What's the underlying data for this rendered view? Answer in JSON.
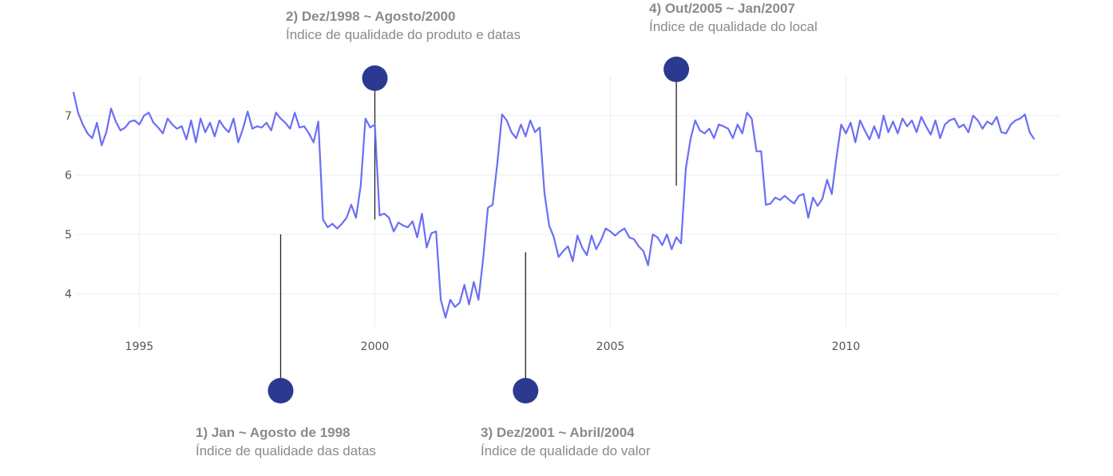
{
  "chart_data": {
    "type": "line",
    "title": "",
    "xlabel": "",
    "ylabel": "",
    "xlim": [
      1993.6,
      2014.6
    ],
    "ylim": [
      3.5,
      7.5
    ],
    "xticks": [
      "1995",
      "2000",
      "2005",
      "2010"
    ],
    "yticks": [
      "4",
      "5",
      "6",
      "7"
    ],
    "grid": true,
    "line_color": "#6b6ef5",
    "annotation_color": "#2b3990",
    "series": [
      {
        "values": [
          [
            1993.6,
            7.4
          ],
          [
            1993.7,
            7.05
          ],
          [
            1993.8,
            6.85
          ],
          [
            1993.9,
            6.7
          ],
          [
            1994.0,
            6.62
          ],
          [
            1994.1,
            6.88
          ],
          [
            1994.2,
            6.5
          ],
          [
            1994.3,
            6.72
          ],
          [
            1994.4,
            7.12
          ],
          [
            1994.5,
            6.9
          ],
          [
            1994.6,
            6.75
          ],
          [
            1994.7,
            6.8
          ],
          [
            1994.8,
            6.9
          ],
          [
            1994.9,
            6.92
          ],
          [
            1995.0,
            6.85
          ],
          [
            1995.1,
            7.0
          ],
          [
            1995.2,
            7.05
          ],
          [
            1995.3,
            6.88
          ],
          [
            1995.4,
            6.8
          ],
          [
            1995.5,
            6.7
          ],
          [
            1995.6,
            6.95
          ],
          [
            1995.7,
            6.85
          ],
          [
            1995.8,
            6.78
          ],
          [
            1995.9,
            6.82
          ],
          [
            1996.0,
            6.6
          ],
          [
            1996.1,
            6.92
          ],
          [
            1996.2,
            6.55
          ],
          [
            1996.3,
            6.95
          ],
          [
            1996.4,
            6.72
          ],
          [
            1996.5,
            6.88
          ],
          [
            1996.6,
            6.65
          ],
          [
            1996.7,
            6.92
          ],
          [
            1996.8,
            6.8
          ],
          [
            1996.9,
            6.72
          ],
          [
            1997.0,
            6.95
          ],
          [
            1997.1,
            6.55
          ],
          [
            1997.2,
            6.78
          ],
          [
            1997.3,
            7.07
          ],
          [
            1997.4,
            6.78
          ],
          [
            1997.5,
            6.82
          ],
          [
            1997.6,
            6.8
          ],
          [
            1997.7,
            6.88
          ],
          [
            1997.8,
            6.75
          ],
          [
            1997.9,
            7.05
          ],
          [
            1998.0,
            6.95
          ],
          [
            1998.1,
            6.88
          ],
          [
            1998.2,
            6.78
          ],
          [
            1998.3,
            7.05
          ],
          [
            1998.4,
            6.8
          ],
          [
            1998.5,
            6.82
          ],
          [
            1998.6,
            6.7
          ],
          [
            1998.7,
            6.55
          ],
          [
            1998.8,
            6.9
          ],
          [
            1998.9,
            5.25
          ],
          [
            1999.0,
            5.12
          ],
          [
            1999.1,
            5.18
          ],
          [
            1999.2,
            5.1
          ],
          [
            1999.3,
            5.18
          ],
          [
            1999.4,
            5.28
          ],
          [
            1999.5,
            5.5
          ],
          [
            1999.6,
            5.28
          ],
          [
            1999.7,
            5.82
          ],
          [
            1999.8,
            6.95
          ],
          [
            1999.9,
            6.8
          ],
          [
            2000.0,
            6.85
          ],
          [
            2000.1,
            5.32
          ],
          [
            2000.2,
            5.35
          ],
          [
            2000.3,
            5.28
          ],
          [
            2000.4,
            5.05
          ],
          [
            2000.5,
            5.2
          ],
          [
            2000.6,
            5.15
          ],
          [
            2000.7,
            5.12
          ],
          [
            2000.8,
            5.22
          ],
          [
            2000.9,
            4.95
          ],
          [
            2001.0,
            5.35
          ],
          [
            2001.1,
            4.78
          ],
          [
            2001.2,
            5.02
          ],
          [
            2001.3,
            5.05
          ],
          [
            2001.4,
            3.9
          ],
          [
            2001.5,
            3.6
          ],
          [
            2001.6,
            3.9
          ],
          [
            2001.7,
            3.78
          ],
          [
            2001.8,
            3.85
          ],
          [
            2001.9,
            4.15
          ],
          [
            2002.0,
            3.82
          ],
          [
            2002.1,
            4.2
          ],
          [
            2002.2,
            3.9
          ],
          [
            2002.3,
            4.6
          ],
          [
            2002.4,
            5.45
          ],
          [
            2002.5,
            5.5
          ],
          [
            2002.6,
            6.2
          ],
          [
            2002.7,
            7.02
          ],
          [
            2002.8,
            6.92
          ],
          [
            2002.9,
            6.72
          ],
          [
            2003.0,
            6.62
          ],
          [
            2003.1,
            6.85
          ],
          [
            2003.2,
            6.65
          ],
          [
            2003.3,
            6.92
          ],
          [
            2003.4,
            6.72
          ],
          [
            2003.5,
            6.8
          ],
          [
            2003.6,
            5.7
          ],
          [
            2003.7,
            5.15
          ],
          [
            2003.8,
            4.95
          ],
          [
            2003.9,
            4.62
          ],
          [
            2004.0,
            4.72
          ],
          [
            2004.1,
            4.8
          ],
          [
            2004.2,
            4.55
          ],
          [
            2004.3,
            4.98
          ],
          [
            2004.4,
            4.78
          ],
          [
            2004.5,
            4.65
          ],
          [
            2004.6,
            4.98
          ],
          [
            2004.7,
            4.75
          ],
          [
            2004.8,
            4.9
          ],
          [
            2004.9,
            5.1
          ],
          [
            2005.0,
            5.05
          ],
          [
            2005.1,
            4.98
          ],
          [
            2005.2,
            5.05
          ],
          [
            2005.3,
            5.1
          ],
          [
            2005.4,
            4.95
          ],
          [
            2005.5,
            4.92
          ],
          [
            2005.6,
            4.8
          ],
          [
            2005.7,
            4.72
          ],
          [
            2005.8,
            4.48
          ],
          [
            2005.9,
            5.0
          ],
          [
            2006.0,
            4.95
          ],
          [
            2006.1,
            4.82
          ],
          [
            2006.2,
            5.0
          ],
          [
            2006.3,
            4.75
          ],
          [
            2006.4,
            4.95
          ],
          [
            2006.5,
            4.85
          ],
          [
            2006.6,
            6.1
          ],
          [
            2006.7,
            6.6
          ],
          [
            2006.8,
            6.92
          ],
          [
            2006.9,
            6.75
          ],
          [
            2007.0,
            6.7
          ],
          [
            2007.1,
            6.78
          ],
          [
            2007.2,
            6.62
          ],
          [
            2007.3,
            6.85
          ],
          [
            2007.4,
            6.82
          ],
          [
            2007.5,
            6.78
          ],
          [
            2007.6,
            6.62
          ],
          [
            2007.7,
            6.85
          ],
          [
            2007.8,
            6.7
          ],
          [
            2007.9,
            7.05
          ],
          [
            2008.0,
            6.95
          ],
          [
            2008.1,
            6.4
          ],
          [
            2008.2,
            6.4
          ],
          [
            2008.3,
            5.5
          ],
          [
            2008.4,
            5.52
          ],
          [
            2008.5,
            5.62
          ],
          [
            2008.6,
            5.58
          ],
          [
            2008.7,
            5.65
          ],
          [
            2008.8,
            5.58
          ],
          [
            2008.9,
            5.52
          ],
          [
            2009.0,
            5.65
          ],
          [
            2009.1,
            5.68
          ],
          [
            2009.2,
            5.28
          ],
          [
            2009.3,
            5.62
          ],
          [
            2009.4,
            5.48
          ],
          [
            2009.5,
            5.6
          ],
          [
            2009.6,
            5.92
          ],
          [
            2009.7,
            5.68
          ],
          [
            2009.8,
            6.3
          ],
          [
            2009.9,
            6.85
          ],
          [
            2010.0,
            6.7
          ],
          [
            2010.1,
            6.88
          ],
          [
            2010.2,
            6.55
          ],
          [
            2010.3,
            6.92
          ],
          [
            2010.4,
            6.75
          ],
          [
            2010.5,
            6.6
          ],
          [
            2010.6,
            6.82
          ],
          [
            2010.7,
            6.62
          ],
          [
            2010.8,
            7.0
          ],
          [
            2010.9,
            6.72
          ],
          [
            2011.0,
            6.9
          ],
          [
            2011.1,
            6.7
          ],
          [
            2011.2,
            6.95
          ],
          [
            2011.3,
            6.82
          ],
          [
            2011.4,
            6.92
          ],
          [
            2011.5,
            6.72
          ],
          [
            2011.6,
            6.98
          ],
          [
            2011.7,
            6.82
          ],
          [
            2011.8,
            6.68
          ],
          [
            2011.9,
            6.92
          ],
          [
            2012.0,
            6.62
          ],
          [
            2012.1,
            6.85
          ],
          [
            2012.2,
            6.92
          ],
          [
            2012.3,
            6.95
          ],
          [
            2012.4,
            6.8
          ],
          [
            2012.5,
            6.85
          ],
          [
            2012.6,
            6.72
          ],
          [
            2012.7,
            7.0
          ],
          [
            2012.8,
            6.92
          ],
          [
            2012.9,
            6.78
          ],
          [
            2013.0,
            6.9
          ],
          [
            2013.1,
            6.85
          ],
          [
            2013.2,
            6.98
          ],
          [
            2013.3,
            6.72
          ],
          [
            2013.4,
            6.7
          ],
          [
            2013.5,
            6.85
          ],
          [
            2013.6,
            6.92
          ],
          [
            2013.7,
            6.95
          ],
          [
            2013.8,
            7.02
          ],
          [
            2013.9,
            6.72
          ],
          [
            2014.0,
            6.6
          ]
        ]
      }
    ],
    "annotations": [
      {
        "title": "1) Jan ~ Agosto de 1998",
        "desc": "Índice de qualidade das datas",
        "x": 1998.0,
        "y": 5.0,
        "side": "below"
      },
      {
        "title": "2) Dez/1998 ~ Agosto/2000",
        "desc": "Índice de qualidade do produto e datas",
        "x": 2000.0,
        "y": 5.25,
        "side": "above"
      },
      {
        "title": "3) Dez/2001 ~ Abril/2004",
        "desc": "Índice de qualidade do valor",
        "x": 2003.2,
        "y": 4.7,
        "side": "below"
      },
      {
        "title": "4) Out/2005 ~ Jan/2007",
        "desc": "Índice de qualidade do local",
        "x": 2006.4,
        "y": 5.82,
        "side": "above"
      }
    ]
  }
}
